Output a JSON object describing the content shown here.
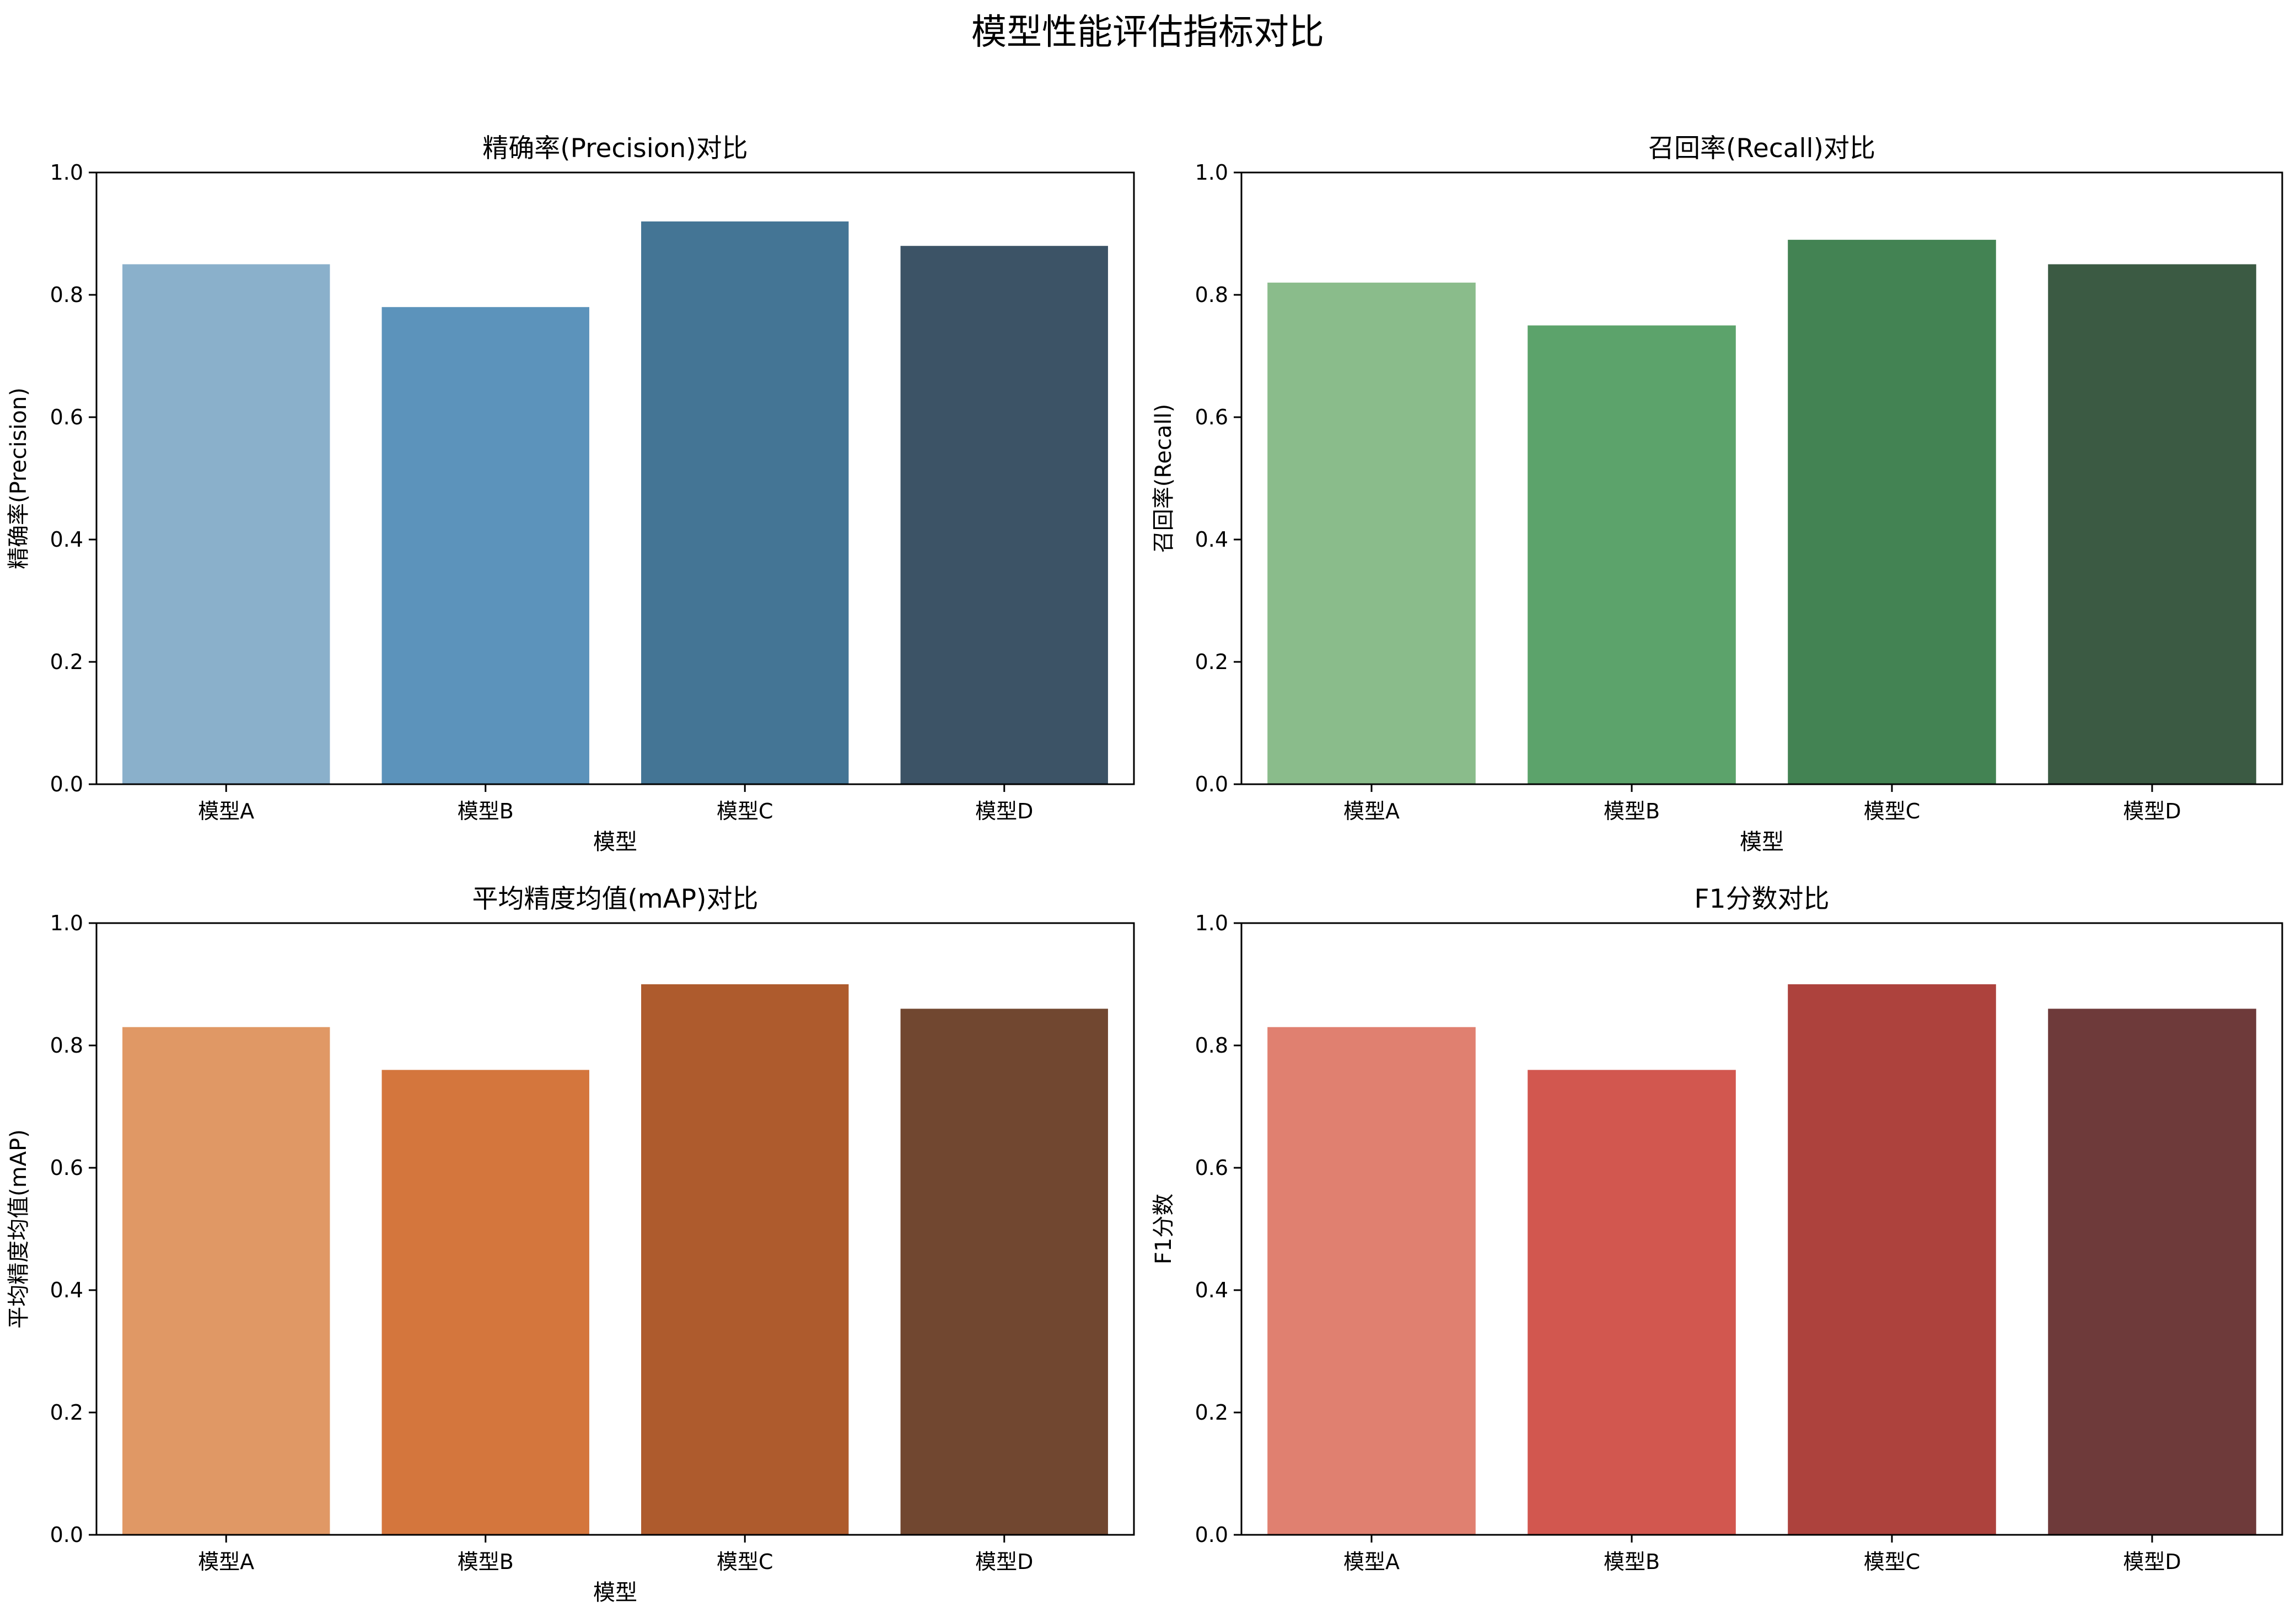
{
  "figure": {
    "title": "模型性能评估指标对比"
  },
  "chart_data": [
    {
      "type": "bar",
      "title": "精确率(Precision)对比",
      "xlabel": "模型",
      "ylabel": "精确率(Precision)",
      "categories": [
        "模型A",
        "模型B",
        "模型C",
        "模型D"
      ],
      "values": [
        0.85,
        0.78,
        0.92,
        0.88
      ],
      "colors": [
        "#8ab0cb",
        "#5c93bb",
        "#447595",
        "#3c5366"
      ],
      "ylim": [
        0,
        1.0
      ],
      "yticks": [
        "0.0",
        "0.2",
        "0.4",
        "0.6",
        "0.8",
        "1.0"
      ],
      "grid": false,
      "legend": "none"
    },
    {
      "type": "bar",
      "title": "召回率(Recall)对比",
      "xlabel": "模型",
      "ylabel": "召回率(Recall)",
      "categories": [
        "模型A",
        "模型B",
        "模型C",
        "模型D"
      ],
      "values": [
        0.82,
        0.75,
        0.89,
        0.85
      ],
      "colors": [
        "#8abc8b",
        "#5ca36b",
        "#438353",
        "#3b5a43"
      ],
      "ylim": [
        0,
        1.0
      ],
      "yticks": [
        "0.0",
        "0.2",
        "0.4",
        "0.6",
        "0.8",
        "1.0"
      ],
      "grid": false,
      "legend": "none"
    },
    {
      "type": "bar",
      "title": "平均精度均值(mAP)对比",
      "xlabel": "模型",
      "ylabel": "平均精度均值(mAP)",
      "categories": [
        "模型A",
        "模型B",
        "模型C",
        "模型D"
      ],
      "values": [
        0.83,
        0.76,
        0.9,
        0.86
      ],
      "colors": [
        "#e09865",
        "#d4763d",
        "#ae5b2d",
        "#714730"
      ],
      "ylim": [
        0,
        1.0
      ],
      "yticks": [
        "0.0",
        "0.2",
        "0.4",
        "0.6",
        "0.8",
        "1.0"
      ],
      "grid": false,
      "legend": "none"
    },
    {
      "type": "bar",
      "title": "F1分数对比",
      "xlabel": "",
      "ylabel": "F1分数",
      "categories": [
        "模型A",
        "模型B",
        "模型C",
        "模型D"
      ],
      "values": [
        0.83,
        0.76,
        0.9,
        0.86
      ],
      "colors": [
        "#e08070",
        "#d2574f",
        "#ad423d",
        "#6e3a3a"
      ],
      "ylim": [
        0,
        1.0
      ],
      "yticks": [
        "0.0",
        "0.2",
        "0.4",
        "0.6",
        "0.8",
        "1.0"
      ],
      "grid": false,
      "legend": "none"
    }
  ]
}
